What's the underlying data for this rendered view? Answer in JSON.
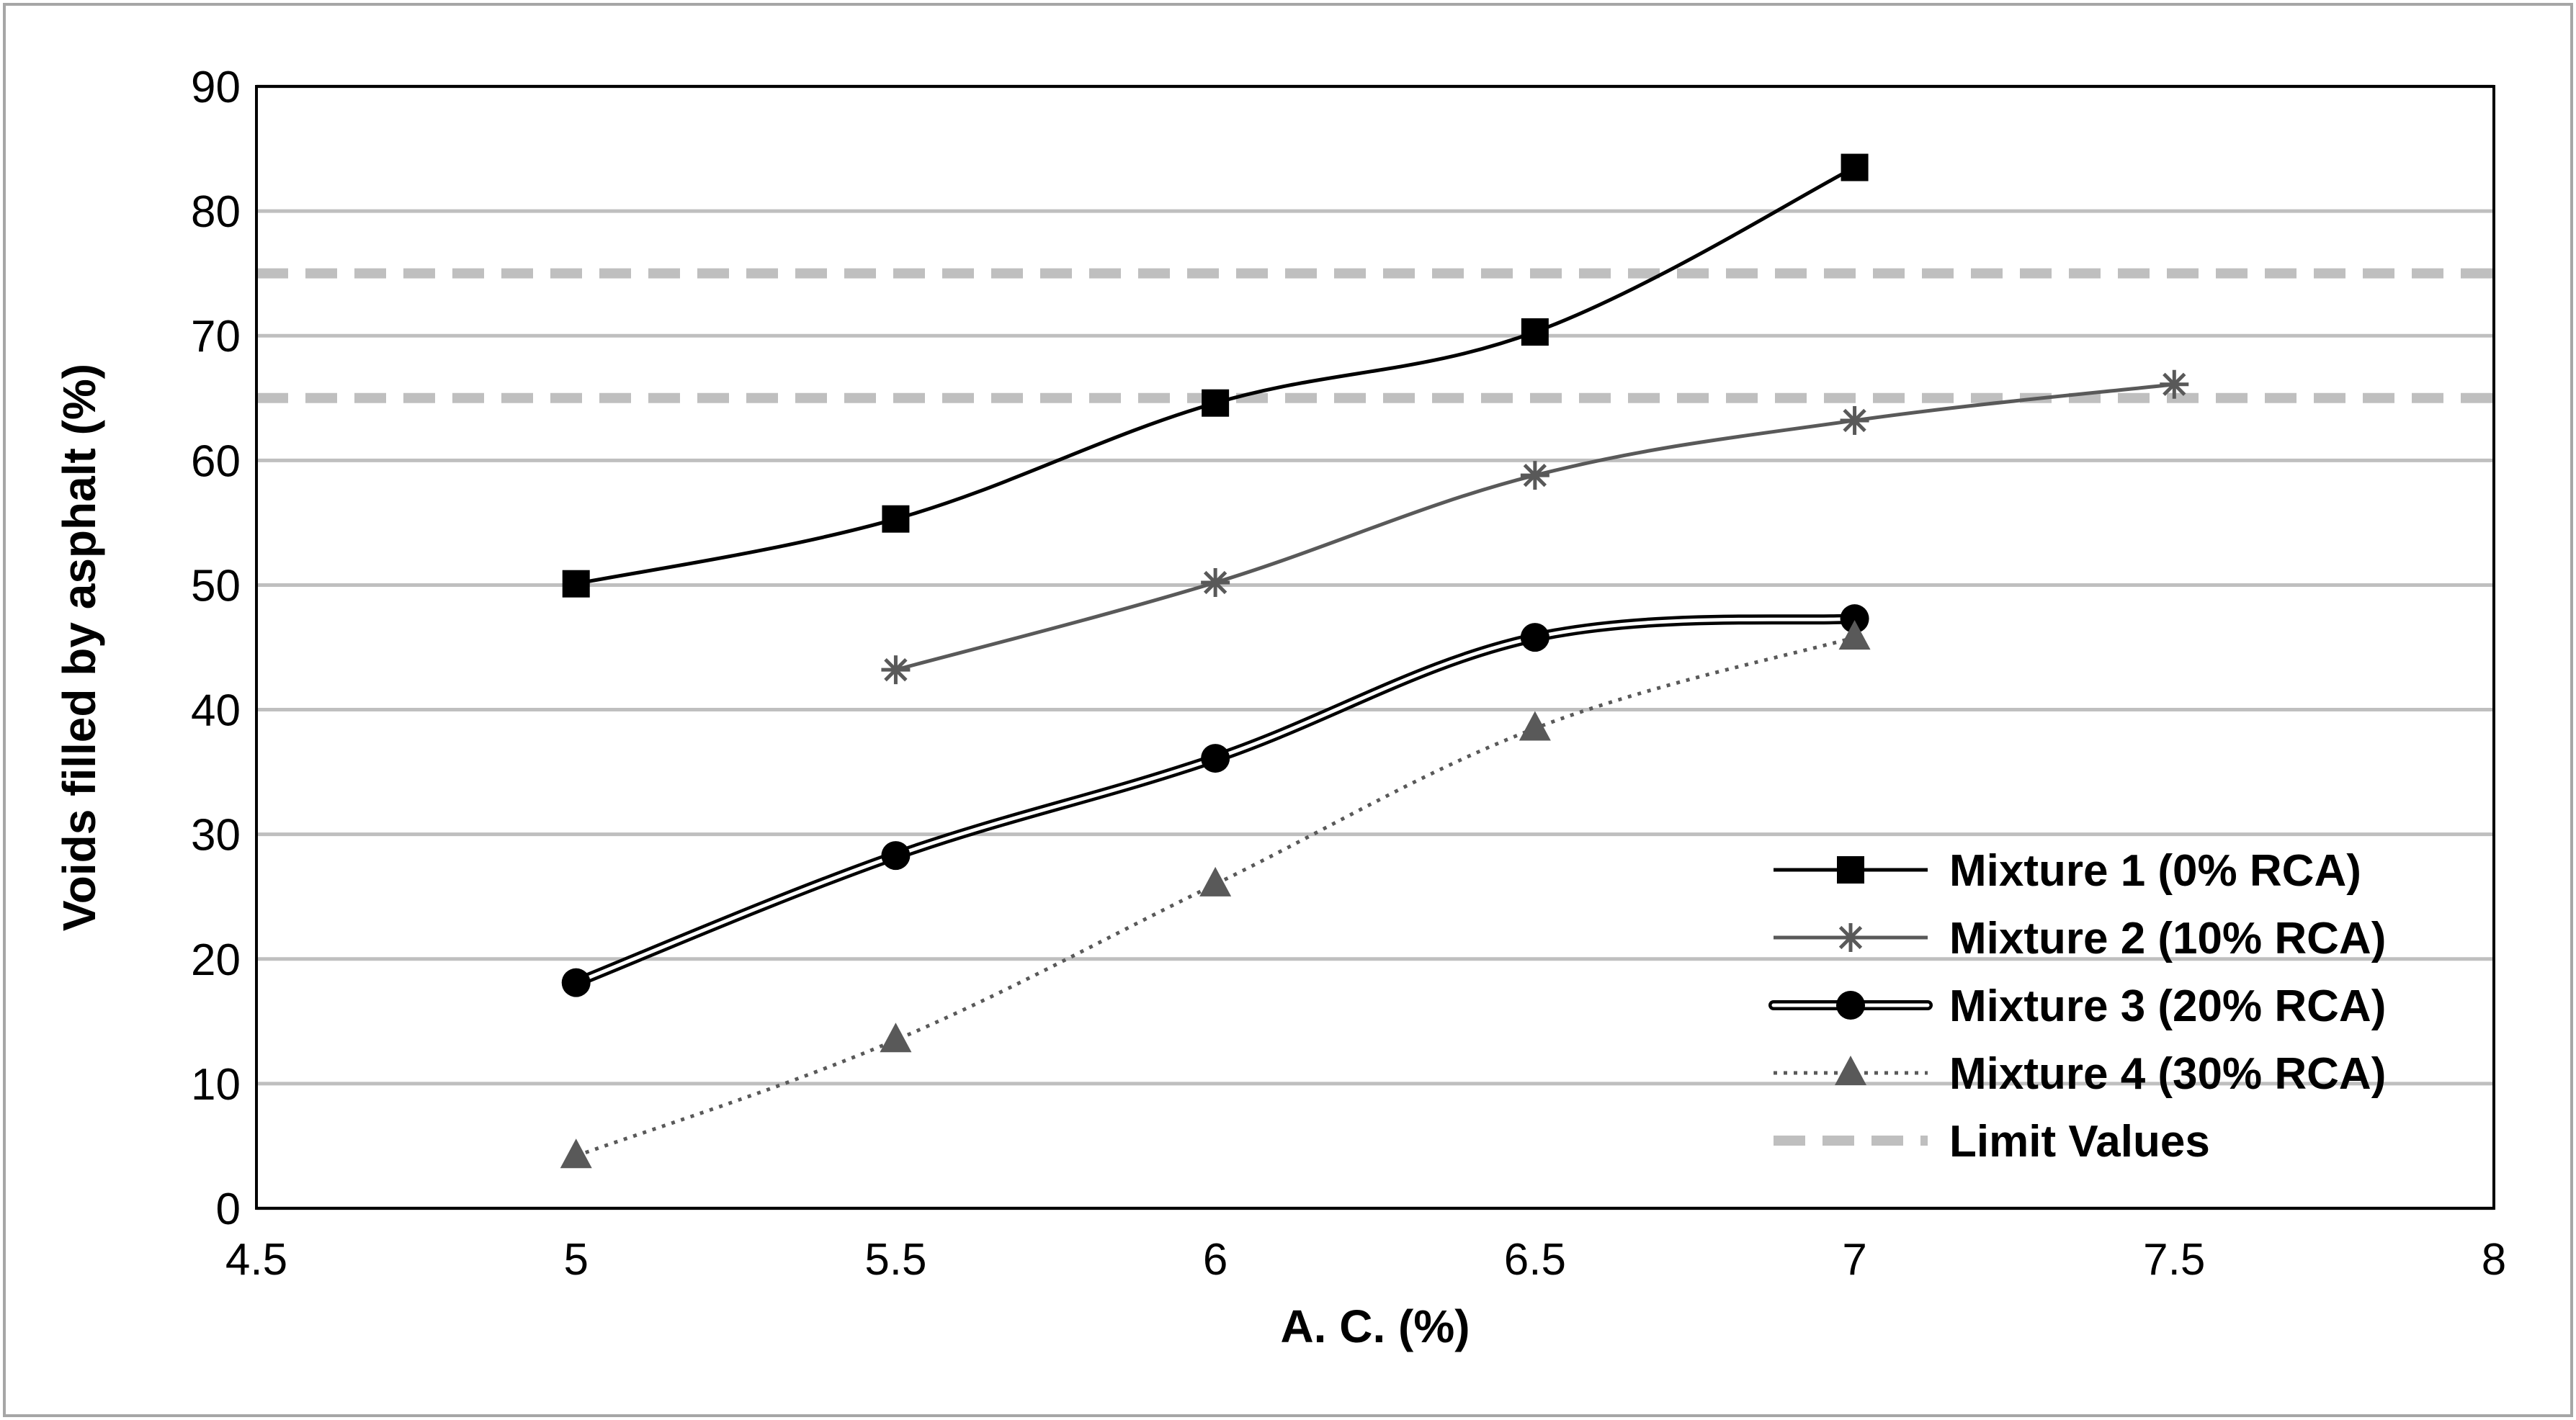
{
  "chart_data": {
    "type": "line",
    "title": "",
    "xlabel": "A. C. (%)",
    "ylabel": "Voids filled by asphalt (%)",
    "xlim": [
      4.5,
      8
    ],
    "ylim": [
      0,
      90
    ],
    "x_ticks": [
      4.5,
      5,
      5.5,
      6,
      6.5,
      7,
      7.5,
      8
    ],
    "x_tick_labels": [
      "4.5",
      "5",
      "5.5",
      "6",
      "6.5",
      "7",
      "7.5",
      "8"
    ],
    "y_ticks": [
      0,
      10,
      20,
      30,
      40,
      50,
      60,
      70,
      80,
      90
    ],
    "y_tick_labels": [
      "0",
      "10",
      "20",
      "30",
      "40",
      "50",
      "60",
      "70",
      "80",
      "90"
    ],
    "grid": "horizontal",
    "legend_position": "bottom-right",
    "series": [
      {
        "name": "Mixture 1 (0% RCA)",
        "x": [
          5,
          5.5,
          6,
          6.5,
          7
        ],
        "values": [
          50.1,
          55.3,
          64.6,
          70.3,
          83.5
        ],
        "color": "#000000",
        "marker": "square",
        "line_style": "solid"
      },
      {
        "name": "Mixture 2 (10% RCA)",
        "x": [
          5.5,
          6,
          6.5,
          7,
          7.5
        ],
        "values": [
          43.2,
          50.2,
          58.8,
          63.2,
          66.1
        ],
        "color": "#595959",
        "marker": "asterisk",
        "line_style": "solid"
      },
      {
        "name": "Mixture 3 (20% RCA)",
        "x": [
          5,
          5.5,
          6,
          6.5,
          7
        ],
        "values": [
          18.1,
          28.3,
          36.1,
          45.8,
          47.3
        ],
        "color": "#000000",
        "marker": "circle",
        "line_style": "double"
      },
      {
        "name": "Mixture 4 (30% RCA)",
        "x": [
          5,
          5.5,
          6,
          6.5,
          7
        ],
        "values": [
          4.2,
          13.5,
          26.0,
          38.5,
          45.8
        ],
        "color": "#595959",
        "marker": "triangle",
        "line_style": "dotted"
      }
    ],
    "limit_lines": {
      "name": "Limit Values",
      "values": [
        65,
        75
      ],
      "color": "#bfbfbf",
      "line_style": "dashed"
    }
  }
}
